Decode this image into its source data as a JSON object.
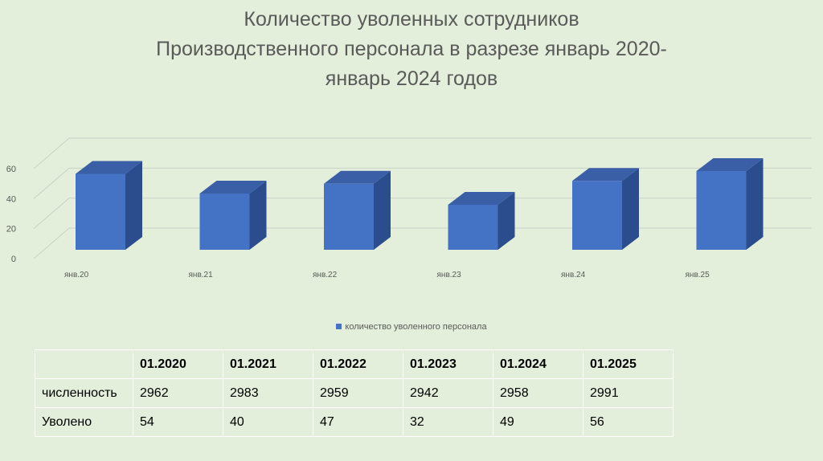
{
  "title_lines": [
    "Количество уволенных сотрудников",
    "Производственного персонала в разрезе январь 2020-",
    "январь 2024 годов"
  ],
  "chart_data": {
    "type": "bar",
    "style": "3d-column",
    "categories": [
      "янв.20",
      "янв.21",
      "янв.22",
      "янв.23",
      "янв.24",
      "янв.25"
    ],
    "series": [
      {
        "name": "количество уволенного персонала",
        "values": [
          54,
          40,
          47,
          32,
          49,
          56
        ],
        "color": "#4472c4"
      }
    ],
    "ylim": [
      0,
      60
    ],
    "yticks": [
      0,
      20,
      40,
      60
    ],
    "grid": true,
    "legend": "bottom"
  },
  "legend": {
    "label": "количество уволенного персонала"
  },
  "table": {
    "header": [
      "",
      "01.2020",
      "01.2021",
      "01.2022",
      "01.2023",
      "01.2024",
      "01.2025"
    ],
    "rows": [
      [
        "численность",
        "2962",
        "2983",
        "2959",
        "2942",
        "2958",
        "2991"
      ],
      [
        "Уволено",
        "54",
        "40",
        "47",
        "32",
        "49",
        "56"
      ]
    ]
  }
}
